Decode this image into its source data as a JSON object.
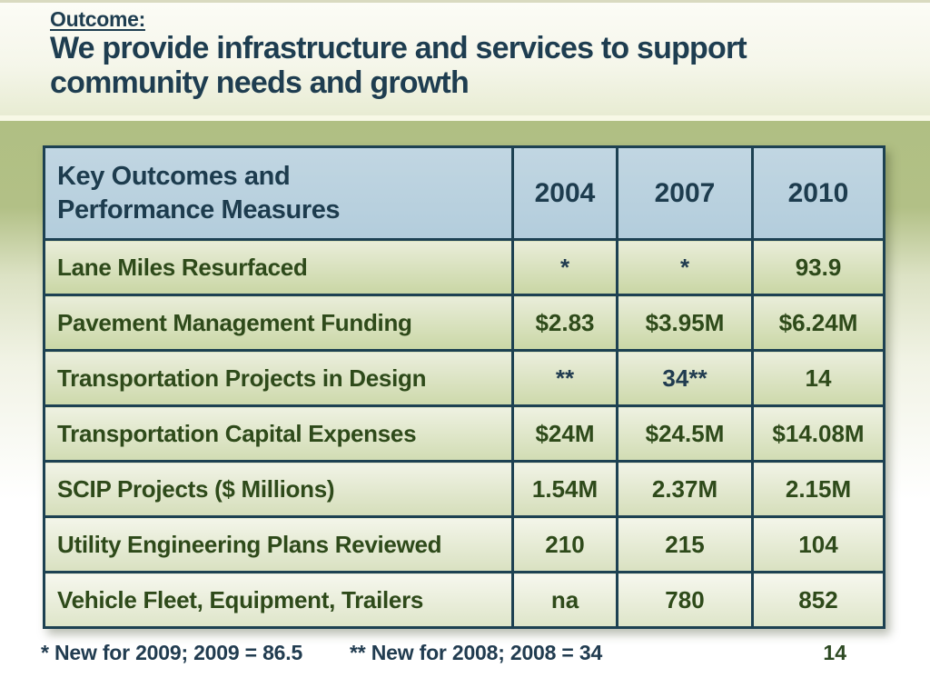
{
  "slide": {
    "kicker": "Outcome:",
    "title_lines": [
      "We provide infrastructure and services to support",
      "community needs and growth"
    ],
    "footnotes": {
      "first": "* New for 2009; 2009 = 86.5",
      "second": "** New for 2008; 2008 = 34"
    },
    "page_number": "14"
  },
  "table": {
    "header": {
      "label": "Key Outcomes  and\nPerformance Measures",
      "years": [
        "2004",
        "2007",
        "2010"
      ]
    },
    "rows": [
      {
        "label": "Lane Miles Resurfaced",
        "values": [
          {
            "text": "*",
            "tone": "navy"
          },
          {
            "text": "*",
            "tone": "navy"
          },
          {
            "text": "93.9",
            "tone": "green"
          }
        ]
      },
      {
        "label": "Pavement Management Funding",
        "values": [
          {
            "text": "$2.83",
            "tone": "green"
          },
          {
            "text": "$3.95M",
            "tone": "green"
          },
          {
            "text": "$6.24M",
            "tone": "green"
          }
        ]
      },
      {
        "label": "Transportation Projects in Design",
        "values": [
          {
            "text": "**",
            "tone": "navy"
          },
          {
            "text": "34**",
            "tone": "navy"
          },
          {
            "text": "14",
            "tone": "green"
          }
        ]
      },
      {
        "label": "Transportation Capital Expenses",
        "values": [
          {
            "text": "$24M",
            "tone": "green"
          },
          {
            "text": "$24.5M",
            "tone": "green"
          },
          {
            "text": "$14.08M",
            "tone": "green"
          }
        ]
      },
      {
        "label": "SCIP Projects ($ Millions)",
        "values": [
          {
            "text": "1.54M",
            "tone": "green"
          },
          {
            "text": "2.37M",
            "tone": "green"
          },
          {
            "text": "2.15M",
            "tone": "green"
          }
        ]
      },
      {
        "label": "Utility Engineering Plans Reviewed",
        "values": [
          {
            "text": "210",
            "tone": "green"
          },
          {
            "text": "215",
            "tone": "green"
          },
          {
            "text": "104",
            "tone": "green"
          }
        ]
      },
      {
        "label": "Vehicle Fleet, Equipment, Trailers",
        "values": [
          {
            "text": "na",
            "tone": "green"
          },
          {
            "text": "780",
            "tone": "green"
          },
          {
            "text": "852",
            "tone": "green"
          }
        ]
      }
    ]
  },
  "colors": {
    "title_text": "#1e3d50",
    "table_border": "#1d4152",
    "header_cell_bg": "#b7cfde",
    "row_text_green": "#2e4a1a",
    "note_text_navy": "#213c50",
    "background_green": "#b1c084"
  }
}
